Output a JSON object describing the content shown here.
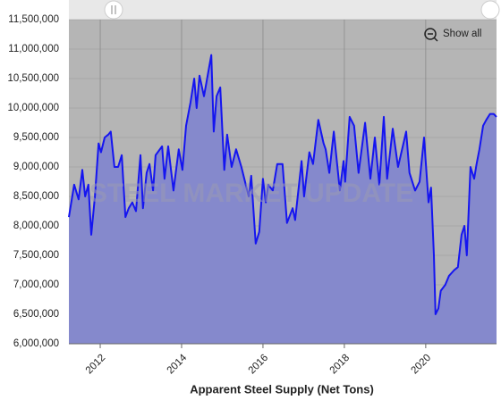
{
  "chart_data": {
    "type": "area",
    "x_label": "Apparent Steel Supply (Net Tons)",
    "watermark": "STEEL MARKET UPDATE",
    "button": "Show all",
    "series": [
      {
        "color": "#1515f0",
        "fill": "#8589cc",
        "x": [
          2011.23,
          2011.36,
          2011.47,
          2011.56,
          2011.63,
          2011.71,
          2011.78,
          2011.87,
          2011.96,
          2012.02,
          2012.11,
          2012.2,
          2012.26,
          2012.35,
          2012.44,
          2012.53,
          2012.62,
          2012.7,
          2012.79,
          2012.88,
          2012.99,
          2013.05,
          2013.14,
          2013.21,
          2013.3,
          2013.36,
          2013.52,
          2013.58,
          2013.67,
          2013.8,
          2013.93,
          2014.02,
          2014.11,
          2014.22,
          2014.31,
          2014.37,
          2014.44,
          2014.55,
          2014.73,
          2014.79,
          2014.86,
          2014.95,
          2015.05,
          2015.12,
          2015.23,
          2015.34,
          2015.47,
          2015.65,
          2015.71,
          2015.82,
          2015.91,
          2016.0,
          2016.07,
          2016.13,
          2016.24,
          2016.35,
          2016.48,
          2016.59,
          2016.73,
          2016.79,
          2016.95,
          2017.01,
          2017.14,
          2017.23,
          2017.36,
          2017.49,
          2017.54,
          2017.63,
          2017.74,
          2017.89,
          2017.98,
          2018.02,
          2018.13,
          2018.24,
          2018.35,
          2018.51,
          2018.64,
          2018.75,
          2018.86,
          2018.97,
          2019.05,
          2019.19,
          2019.32,
          2019.52,
          2019.6,
          2019.74,
          2019.85,
          2019.96,
          2020.07,
          2020.13,
          2020.2,
          2020.24,
          2020.31,
          2020.37,
          2020.48,
          2020.57,
          2020.7,
          2020.79,
          2020.88,
          2020.95,
          2021.01,
          2021.1,
          2021.19,
          2021.25,
          2021.32,
          2021.41,
          2021.49,
          2021.58,
          2021.67,
          2021.74
        ],
        "values": [
          8150000,
          8700000,
          8450000,
          8950000,
          8500000,
          8700000,
          7850000,
          8500000,
          9400000,
          9250000,
          9500000,
          9550000,
          9600000,
          9000000,
          9000000,
          9200000,
          8150000,
          8300000,
          8400000,
          8250000,
          9200000,
          8300000,
          8900000,
          9050000,
          8600000,
          9200000,
          9350000,
          8800000,
          9350000,
          8600000,
          9300000,
          8950000,
          9700000,
          10100000,
          10500000,
          10000000,
          10550000,
          10200000,
          10900000,
          9600000,
          10200000,
          10350000,
          8950000,
          9550000,
          9000000,
          9300000,
          9000000,
          8500000,
          8850000,
          7700000,
          7900000,
          8800000,
          8400000,
          8700000,
          8600000,
          9050000,
          9050000,
          8050000,
          8300000,
          8100000,
          9100000,
          8500000,
          9250000,
          9050000,
          9800000,
          9400000,
          9300000,
          8900000,
          9600000,
          8600000,
          9100000,
          8750000,
          9850000,
          9700000,
          8900000,
          9750000,
          8800000,
          9500000,
          8700000,
          9850000,
          8800000,
          9650000,
          9000000,
          9600000,
          8900000,
          8600000,
          8750000,
          9500000,
          8400000,
          8650000,
          7500000,
          6500000,
          6600000,
          6900000,
          7000000,
          7150000,
          7250000,
          7300000,
          7850000,
          8000000,
          7500000,
          9000000,
          8800000,
          9050000,
          9300000,
          9700000,
          9800000,
          9900000,
          9900000,
          9850000
        ]
      }
    ],
    "xlim": [
      2011.23,
      2021.74
    ],
    "xticks": [
      2012,
      2014,
      2016,
      2018,
      2020
    ],
    "ylim": [
      6000000,
      11500000
    ],
    "yticks": [
      {
        "value": 6000000,
        "label": "6,000,000"
      },
      {
        "value": 6500000,
        "label": "6,500,000"
      },
      {
        "value": 7000000,
        "label": "7,000,000"
      },
      {
        "value": 7500000,
        "label": "7,500,000"
      },
      {
        "value": 8000000,
        "label": "8,000,000"
      },
      {
        "value": 8500000,
        "label": "8,500,000"
      },
      {
        "value": 9000000,
        "label": "9,000,000"
      },
      {
        "value": 9500000,
        "label": "9,500,000"
      },
      {
        "value": 10000000,
        "label": "10,000,000"
      },
      {
        "value": 10500000,
        "label": "10,500,000"
      },
      {
        "value": 11000000,
        "label": "11,000,000"
      },
      {
        "value": 11500000,
        "label": "11,500,000"
      }
    ],
    "grid": true
  }
}
